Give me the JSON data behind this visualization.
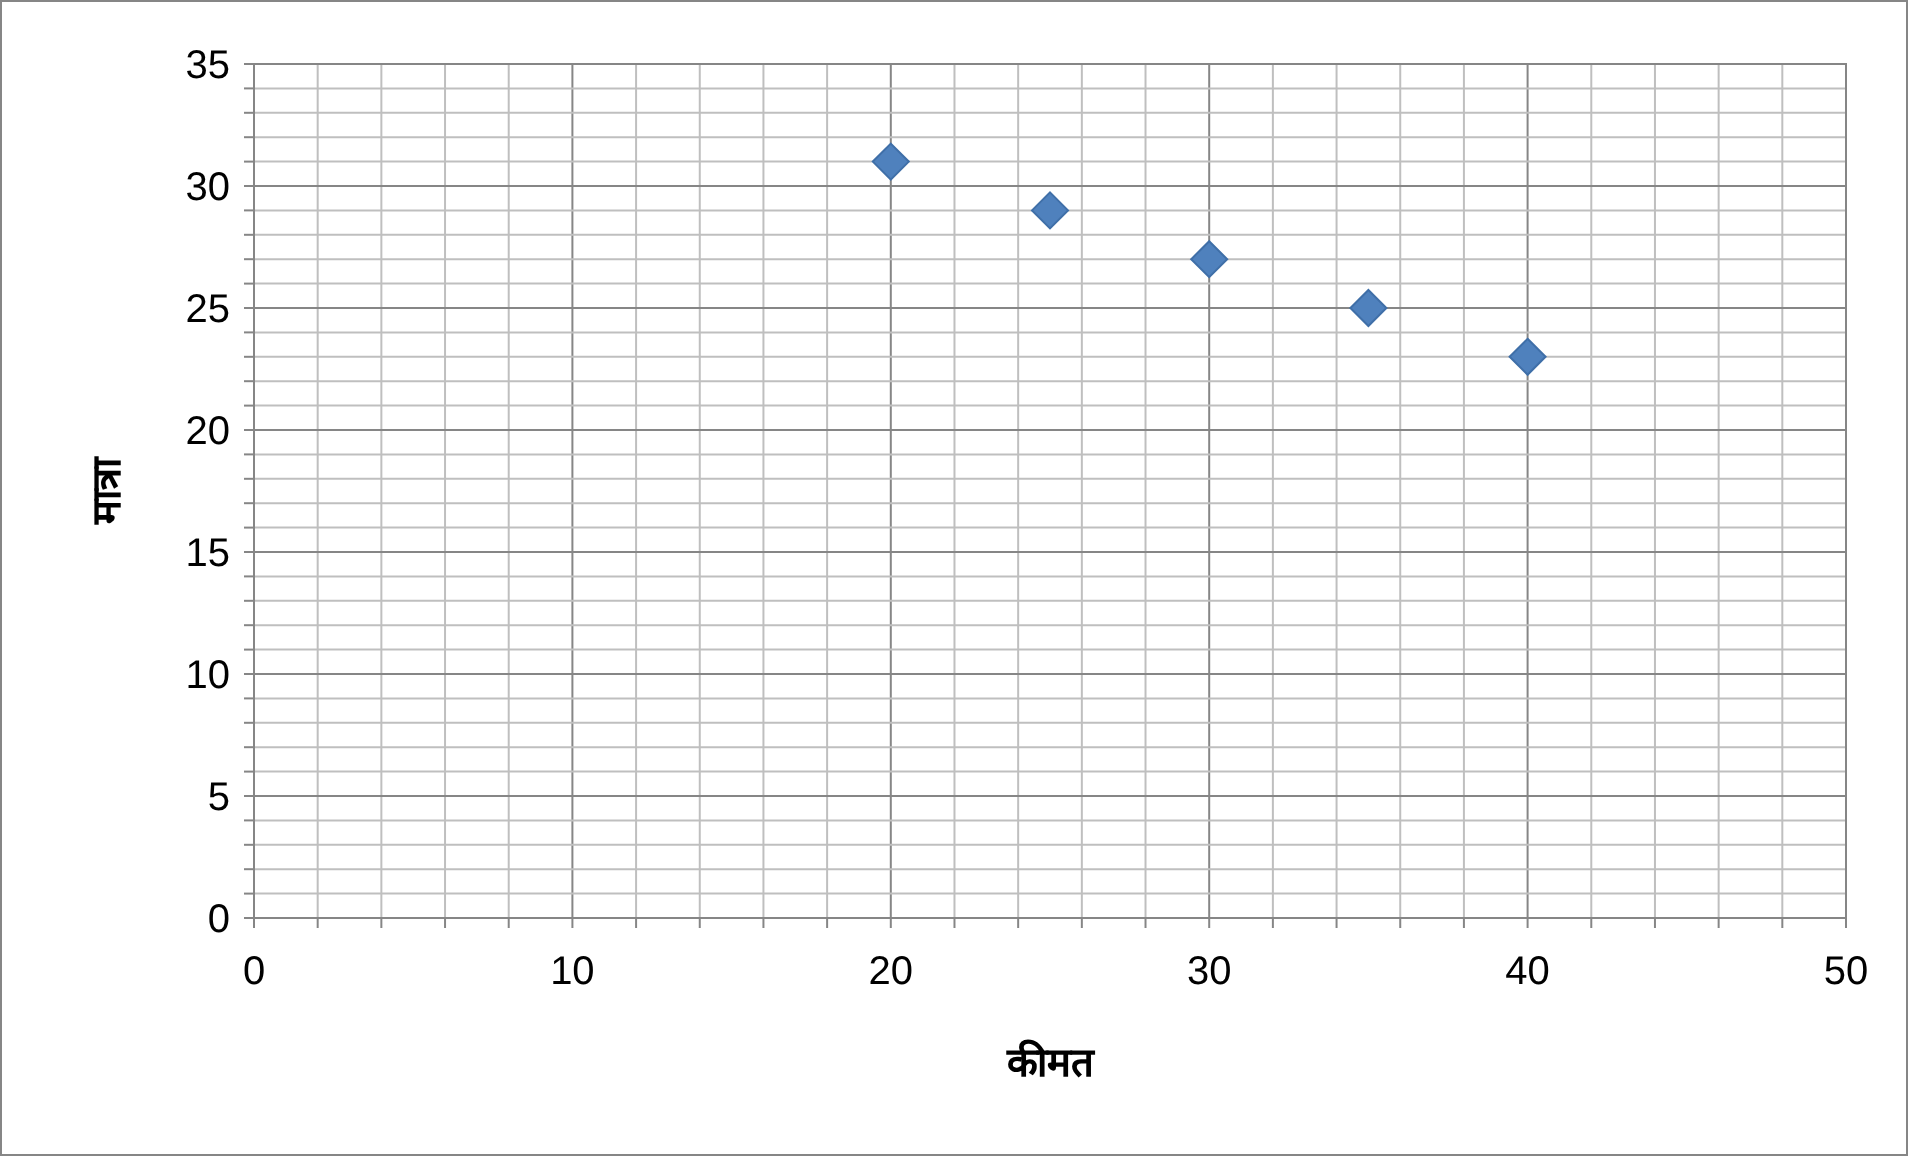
{
  "chart_data": {
    "type": "scatter",
    "xlabel": "कीमत",
    "ylabel": "मात्रा",
    "x": [
      20,
      25,
      30,
      35,
      40
    ],
    "series": [
      {
        "color": "#4f81bd",
        "values": [
          31,
          29,
          27,
          25,
          23
        ]
      }
    ],
    "marker": "diamond",
    "grid": true,
    "xlim": [
      0,
      50
    ],
    "ylim": [
      0,
      35
    ],
    "xticks": [
      0,
      {
        "value": 2,
        "label": null
      },
      {
        "value": 4,
        "label": null
      },
      {
        "value": 6,
        "label": null
      },
      {
        "value": 8,
        "label": null
      },
      10,
      {
        "value": 12,
        "label": null
      },
      {
        "value": 14,
        "label": null
      },
      {
        "value": 16,
        "label": null
      },
      {
        "value": 18,
        "label": null
      },
      20,
      {
        "value": 22,
        "label": null
      },
      {
        "value": 24,
        "label": null
      },
      {
        "value": 26,
        "label": null
      },
      {
        "value": 28,
        "label": null
      },
      30,
      {
        "value": 32,
        "label": null
      },
      {
        "value": 34,
        "label": null
      },
      {
        "value": 36,
        "label": null
      },
      {
        "value": 38,
        "label": null
      },
      40,
      {
        "value": 42,
        "label": null
      },
      {
        "value": 44,
        "label": null
      },
      {
        "value": 46,
        "label": null
      },
      {
        "value": 48,
        "label": null
      },
      50
    ],
    "yticks": [
      0,
      {
        "value": 1,
        "label": null
      },
      {
        "value": 2,
        "label": null
      },
      {
        "value": 3,
        "label": null
      },
      {
        "value": 4,
        "label": null
      },
      5,
      {
        "value": 6,
        "label": null
      },
      {
        "value": 7,
        "label": null
      },
      {
        "value": 8,
        "label": null
      },
      {
        "value": 9,
        "label": null
      },
      10,
      {
        "value": 11,
        "label": null
      },
      {
        "value": 12,
        "label": null
      },
      {
        "value": 13,
        "label": null
      },
      {
        "value": 14,
        "label": null
      },
      15,
      {
        "value": 16,
        "label": null
      },
      {
        "value": 17,
        "label": null
      },
      {
        "value": 18,
        "label": null
      },
      {
        "value": 19,
        "label": null
      },
      20,
      {
        "value": 21,
        "label": null
      },
      {
        "value": 22,
        "label": null
      },
      {
        "value": 23,
        "label": null
      },
      {
        "value": 24,
        "label": null
      },
      25,
      {
        "value": 26,
        "label": null
      },
      {
        "value": 27,
        "label": null
      },
      {
        "value": 28,
        "label": null
      },
      {
        "value": 29,
        "label": null
      },
      30,
      {
        "value": 31,
        "label": null
      },
      {
        "value": 32,
        "label": null
      },
      {
        "value": 33,
        "label": null
      },
      {
        "value": 34,
        "label": null
      },
      35
    ]
  }
}
